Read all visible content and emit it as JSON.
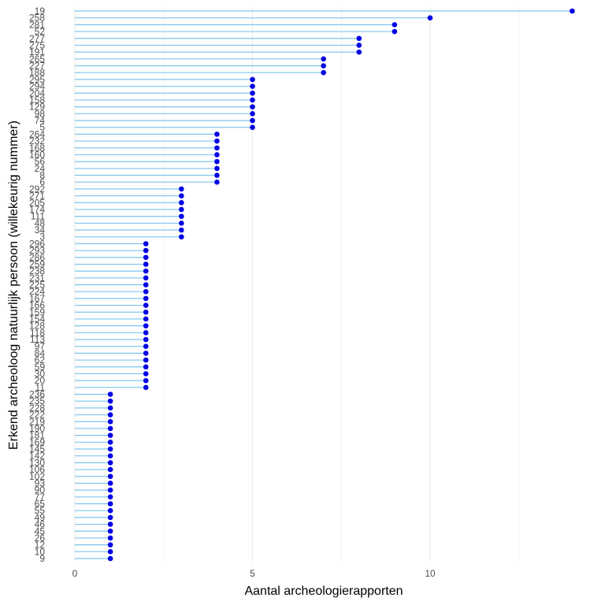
{
  "chart_data": {
    "type": "lollipop",
    "orientation": "horizontal",
    "xlabel": "Aantal archeologierapporten",
    "ylabel": "Erkend archeoloog natuurlijk persoon (willekeurig nummer)",
    "xlim": [
      0,
      14.1
    ],
    "x_ticks": [
      0,
      5,
      10
    ],
    "grid": "vertical major and minor gridlines",
    "colors": {
      "stem": "#7cc4ef",
      "point": "#0000e6",
      "grid": "#ebebeb"
    },
    "categories": [
      "19",
      "258",
      "281",
      "52",
      "277",
      "275",
      "191",
      "265",
      "227",
      "188",
      "295",
      "294",
      "204",
      "158",
      "129",
      "98",
      "74",
      "5",
      "264",
      "232",
      "168",
      "160",
      "56",
      "24",
      "8",
      "6",
      "292",
      "271",
      "205",
      "174",
      "111",
      "48",
      "34",
      "3",
      "296",
      "293",
      "286",
      "259",
      "238",
      "231",
      "225",
      "224",
      "167",
      "166",
      "159",
      "154",
      "128",
      "118",
      "113",
      "97",
      "84",
      "62",
      "59",
      "30",
      "20",
      "11",
      "236",
      "235",
      "228",
      "222",
      "219",
      "190",
      "181",
      "169",
      "145",
      "142",
      "130",
      "106",
      "102",
      "93",
      "90",
      "77",
      "65",
      "55",
      "49",
      "46",
      "45",
      "26",
      "12",
      "10",
      "9"
    ],
    "values": [
      14,
      10,
      9,
      9,
      8,
      8,
      8,
      7,
      7,
      7,
      5,
      5,
      5,
      5,
      5,
      5,
      5,
      5,
      4,
      4,
      4,
      4,
      4,
      4,
      4,
      4,
      3,
      3,
      3,
      3,
      3,
      3,
      3,
      3,
      2,
      2,
      2,
      2,
      2,
      2,
      2,
      2,
      2,
      2,
      2,
      2,
      2,
      2,
      2,
      2,
      2,
      2,
      2,
      2,
      2,
      2,
      1,
      1,
      1,
      1,
      1,
      1,
      1,
      1,
      1,
      1,
      1,
      1,
      1,
      1,
      1,
      1,
      1,
      1,
      1,
      1,
      1,
      1,
      1,
      1,
      1
    ]
  }
}
